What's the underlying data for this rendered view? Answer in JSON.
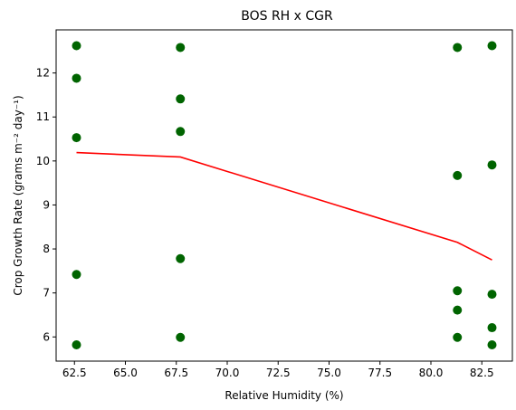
{
  "chart_data": {
    "type": "scatter",
    "title": "BOS RH x CGR",
    "xlabel": "Relative Humidity (%)",
    "ylabel": "Crop Growth Rate (grams m⁻² day⁻¹)",
    "xlim": [
      61.6,
      84.0
    ],
    "ylim": [
      5.45,
      12.98
    ],
    "grid": false,
    "x_ticks": [
      62.5,
      65.0,
      67.5,
      70.0,
      72.5,
      75.0,
      77.5,
      80.0,
      82.5
    ],
    "x_tick_labels": [
      "62.5",
      "65.0",
      "67.5",
      "70.0",
      "72.5",
      "75.0",
      "77.5",
      "80.0",
      "82.5"
    ],
    "y_ticks": [
      6,
      7,
      8,
      9,
      10,
      11,
      12
    ],
    "y_tick_labels": [
      "6",
      "7",
      "8",
      "9",
      "10",
      "11",
      "12"
    ],
    "series": [
      {
        "kind": "scatter",
        "color": "#006400",
        "points": [
          {
            "x": 62.6,
            "y": 12.62
          },
          {
            "x": 62.6,
            "y": 11.88
          },
          {
            "x": 62.6,
            "y": 10.53
          },
          {
            "x": 62.6,
            "y": 7.42
          },
          {
            "x": 62.6,
            "y": 5.82
          },
          {
            "x": 67.7,
            "y": 12.58
          },
          {
            "x": 67.7,
            "y": 11.41
          },
          {
            "x": 67.7,
            "y": 10.67
          },
          {
            "x": 67.7,
            "y": 7.78
          },
          {
            "x": 67.7,
            "y": 5.99
          },
          {
            "x": 81.3,
            "y": 12.58
          },
          {
            "x": 81.3,
            "y": 9.67
          },
          {
            "x": 81.3,
            "y": 7.05
          },
          {
            "x": 81.3,
            "y": 6.61
          },
          {
            "x": 81.3,
            "y": 5.99
          },
          {
            "x": 83.0,
            "y": 12.62
          },
          {
            "x": 83.0,
            "y": 9.91
          },
          {
            "x": 83.0,
            "y": 6.97
          },
          {
            "x": 83.0,
            "y": 6.21
          },
          {
            "x": 83.0,
            "y": 5.82
          }
        ]
      },
      {
        "kind": "line",
        "color": "#ff0000",
        "points": [
          {
            "x": 62.6,
            "y": 10.19
          },
          {
            "x": 67.7,
            "y": 10.09
          },
          {
            "x": 81.3,
            "y": 8.15
          },
          {
            "x": 83.0,
            "y": 7.75
          }
        ]
      }
    ]
  }
}
